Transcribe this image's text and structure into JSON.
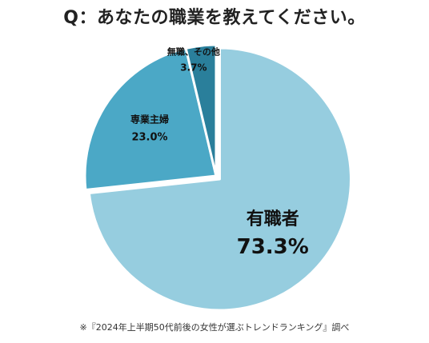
{
  "title": "Q：あなたの職業を教えてください。",
  "footnote": "※『2024年上半期50代前後の女性が選ぶトレンドランキング』調べ",
  "chart_data": {
    "type": "pie",
    "title": "Q：あなたの職業を教えてください。",
    "slices": [
      {
        "label": "有職者",
        "value": 73.3,
        "value_label": "73.3%",
        "color": "#96CDDF"
      },
      {
        "label": "専業主婦",
        "value": 23.0,
        "value_label": "23.0%",
        "color": "#4BA8C6"
      },
      {
        "label": "無職、その他",
        "value": 3.7,
        "value_label": "3.7%",
        "color": "#2A7F9B"
      }
    ],
    "start_position": "12 o'clock",
    "direction": "clockwise",
    "exploded_slice": "有職者"
  }
}
